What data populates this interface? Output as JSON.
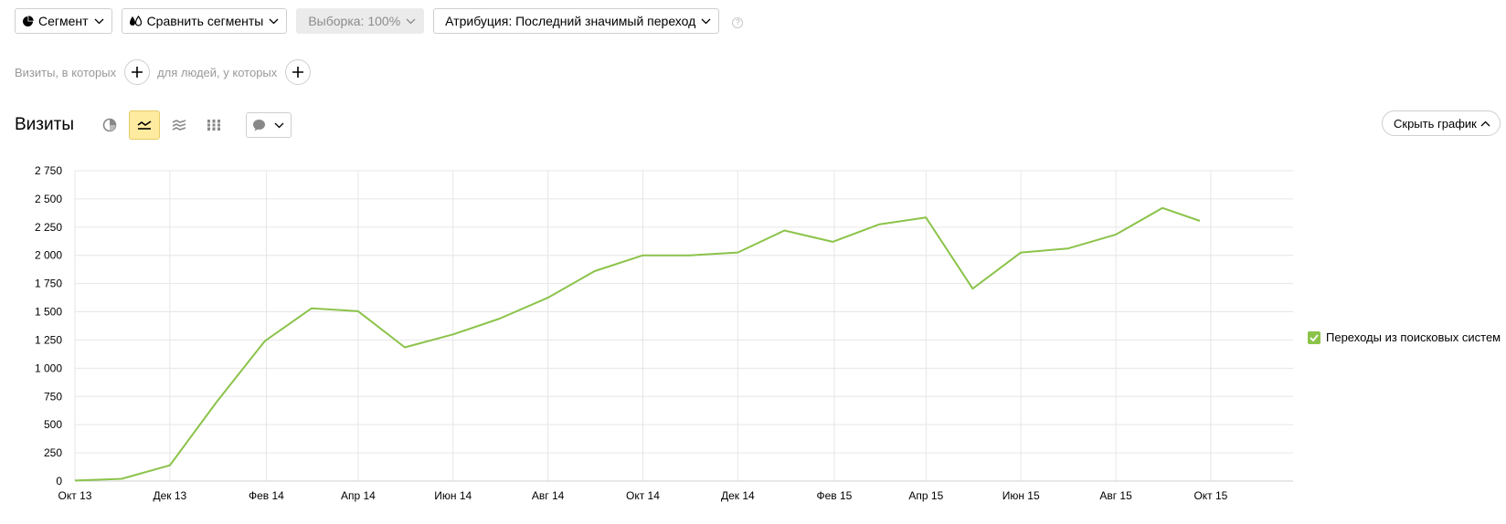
{
  "toolbar": {
    "segment_label": "Сегмент",
    "compare_label": "Сравнить сегменты",
    "sample_label": "Выборка: 100%",
    "attribution_label": "Атрибуция: Последний значимый переход",
    "help_text": "?"
  },
  "segment_row": {
    "visits_label": "Визиты, в которых",
    "people_label": "для людей, у которых"
  },
  "chart_header": {
    "title": "Визиты",
    "hide_label": "Скрыть график"
  },
  "colors": {
    "series": "#8bc34a",
    "grid": "#e6e6e6",
    "active_view": "#ffeba0"
  },
  "chart_data": {
    "type": "line",
    "title": "Визиты",
    "x": [
      "2013-10-01",
      "2013-10-31",
      "2013-12-01",
      "2013-12-31",
      "2014-01-31",
      "2014-03-02",
      "2014-04-01",
      "2014-05-01",
      "2014-06-01",
      "2014-07-01",
      "2014-08-01",
      "2014-08-31",
      "2014-10-01",
      "2014-10-31",
      "2014-12-01",
      "2014-12-31",
      "2015-01-31",
      "2015-03-02",
      "2015-04-01",
      "2015-05-01",
      "2015-06-01",
      "2015-07-01",
      "2015-08-01",
      "2015-08-31",
      "2015-09-24"
    ],
    "series": [
      {
        "name": "Переходы из поисковых систем",
        "values": [
          5,
          20,
          140,
          700,
          1240,
          1530,
          1505,
          1185,
          1300,
          1440,
          1625,
          1860,
          2000,
          2000,
          2025,
          2220,
          2120,
          2275,
          2335,
          1705,
          2025,
          2060,
          2185,
          2420,
          2305
        ]
      }
    ],
    "x_ticks": [
      "Окт 13",
      "Дек 13",
      "Фев 14",
      "Апр 14",
      "Июн 14",
      "Авг 14",
      "Окт 14",
      "Дек 14",
      "Фев 15",
      "Апр 15",
      "Июн 15",
      "Авг 15",
      "Окт 15"
    ],
    "y_ticks": [
      "0",
      "250",
      "500",
      "750",
      "1 000",
      "1 250",
      "1 500",
      "1 750",
      "2 000",
      "2 250",
      "2 500",
      "2 750"
    ],
    "ylim": [
      0,
      2750
    ],
    "grid": true,
    "legend_position": "right",
    "xlabel": "",
    "ylabel": ""
  }
}
